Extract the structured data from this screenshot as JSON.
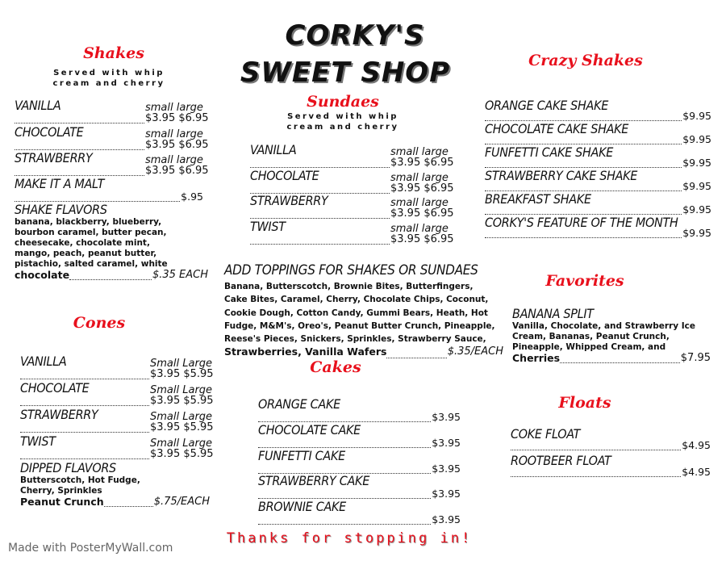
{
  "logo": {
    "line1": "CORKY'S",
    "line2": "SWEET SHOP"
  },
  "shakes": {
    "title": "Shakes",
    "sub1": "Served with whip",
    "sub2": "cream and cherry",
    "items": [
      {
        "name": "VANILLA",
        "sizes": "small large",
        "price": "$3.95 $6.95"
      },
      {
        "name": "CHOCOLATE",
        "sizes": "small large",
        "price": "$3.95 $6.95"
      },
      {
        "name": "STRAWBERRY",
        "sizes": "small large",
        "price": "$3.95 $6.95"
      }
    ],
    "malt": {
      "name": "MAKE IT A MALT",
      "price": "$.95"
    },
    "flavors": {
      "name": "SHAKE FLAVORS",
      "lines": [
        "banana, blackberry, blueberry,",
        "bourbon caramel, butter pecan,",
        "cheesecake, chocolate mint,",
        "mango, peach, peanut butter,",
        "pistachio, salted caramel, white"
      ],
      "last": "chocolate",
      "price": "$.35 EACH"
    }
  },
  "cones": {
    "title": "Cones",
    "items": [
      {
        "name": "VANILLA",
        "sizes": "Small Large",
        "price": "$3.95 $5.95"
      },
      {
        "name": "CHOCOLATE",
        "sizes": "Small Large",
        "price": "$3.95 $5.95"
      },
      {
        "name": "STRAWBERRY",
        "sizes": "Small Large",
        "price": "$3.95 $5.95"
      },
      {
        "name": "TWIST",
        "sizes": "Small Large",
        "price": "$3.95 $5.95"
      }
    ],
    "dipped": {
      "name": "DIPPED FLAVORS",
      "lines": [
        "Butterscotch, Hot Fudge,",
        "Cherry, Sprinkles"
      ],
      "last": "Peanut Crunch",
      "price": "$.75/EACH"
    }
  },
  "sundaes": {
    "title": "Sundaes",
    "sub1": "Served with whip",
    "sub2": "cream and cherry",
    "items": [
      {
        "name": "VANILLA",
        "sizes": "small large",
        "price": "$3.95 $6.95"
      },
      {
        "name": "CHOCOLATE",
        "sizes": "small large",
        "price": "$3.95 $6.95"
      },
      {
        "name": "STRAWBERRY",
        "sizes": "small large",
        "price": "$3.95 $6.95"
      },
      {
        "name": "TWIST",
        "sizes": "small large",
        "price": "$3.95 $6.95"
      }
    ]
  },
  "toppings": {
    "title": "ADD TOPPINGS FOR SHAKES OR SUNDAES",
    "lines": [
      "Banana, Butterscotch, Brownie Bites, Butterfingers,",
      "Cake Bites, Caramel, Cherry, Chocolate Chips, Coconut,",
      "Cookie Dough, Cotton Candy, Gummi Bears, Heath, Hot",
      "Fudge, M&M's, Oreo's, Peanut Butter Crunch, Pineapple,",
      "Reese's Pieces, Snickers, Sprinkles, Strawberry Sauce,"
    ],
    "last": "Strawberries, Vanilla Wafers",
    "price": "$.35/EACH"
  },
  "cakes": {
    "title": "Cakes",
    "items": [
      {
        "name": "ORANGE CAKE",
        "price": "$3.95"
      },
      {
        "name": "CHOCOLATE CAKE",
        "price": "$3.95"
      },
      {
        "name": "FUNFETTI CAKE",
        "price": "$3.95"
      },
      {
        "name": "STRAWBERRY CAKE",
        "price": "$3.95"
      },
      {
        "name": "BROWNIE CAKE",
        "price": "$3.95"
      }
    ]
  },
  "crazy": {
    "title": "Crazy Shakes",
    "items": [
      {
        "name": "ORANGE CAKE SHAKE",
        "price": "$9.95"
      },
      {
        "name": "CHOCOLATE CAKE SHAKE",
        "price": "$9.95"
      },
      {
        "name": "FUNFETTI CAKE SHAKE",
        "price": "$9.95"
      },
      {
        "name": "STRAWBERRY CAKE SHAKE",
        "price": "$9.95"
      },
      {
        "name": "BREAKFAST SHAKE",
        "price": "$9.95"
      },
      {
        "name": "CORKY'S FEATURE OF THE MONTH",
        "price": "$9.95"
      }
    ]
  },
  "favorites": {
    "title": "Favorites",
    "split": {
      "name": "BANANA SPLIT",
      "lines": [
        "Vanilla, Chocolate, and Strawberry Ice",
        "Cream, Bananas, Peanut Crunch,",
        "Pineapple, Whipped Cream, and"
      ],
      "last": "Cherries",
      "price": "$7.95"
    }
  },
  "floats": {
    "title": "Floats",
    "items": [
      {
        "name": "COKE FLOAT",
        "price": "$4.95"
      },
      {
        "name": "ROOTBEER FLOAT",
        "price": "$4.95"
      }
    ]
  },
  "footer": {
    "thanks": "Thanks for stopping in!",
    "watermark": "Made with PosterMyWall.com"
  },
  "colors": {
    "accent": "#e8101c"
  }
}
